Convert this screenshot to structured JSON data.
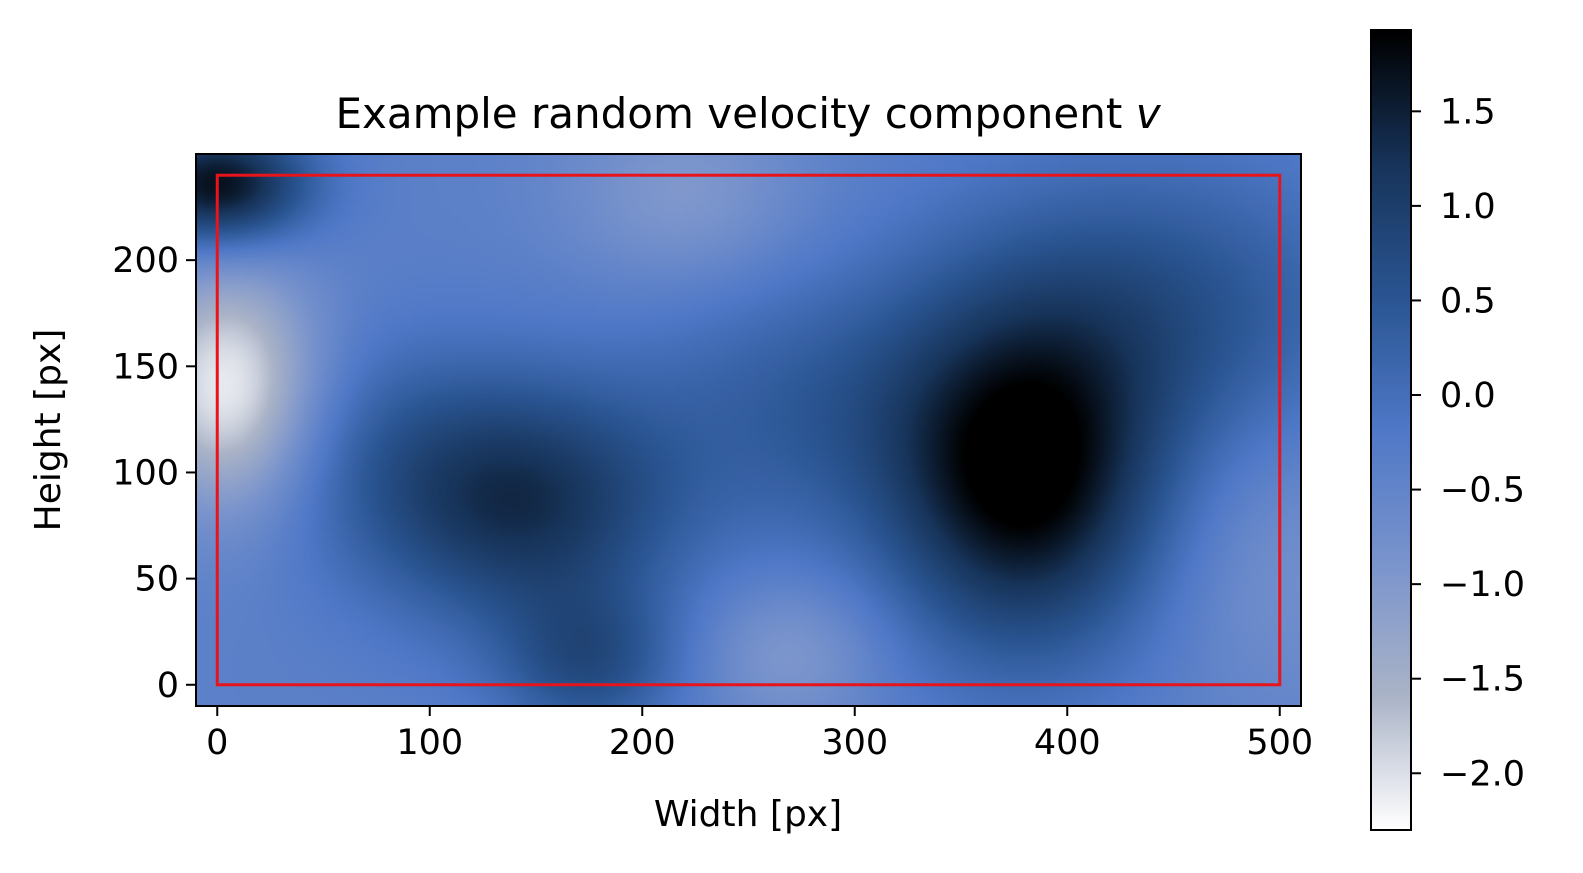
{
  "chart_data": {
    "type": "heatmap",
    "title": "Example random velocity component ",
    "title_var": "v",
    "xlabel": "Width [px]",
    "ylabel": "Height [px]",
    "xlim": [
      -10,
      510
    ],
    "ylim": [
      -10,
      250
    ],
    "x_ticks": [
      0,
      100,
      200,
      300,
      400,
      500
    ],
    "y_ticks": [
      0,
      50,
      100,
      150,
      200
    ],
    "grid": false,
    "colorbar": {
      "range": [
        -2.3,
        1.93
      ],
      "ticks": [
        -2.0,
        -1.5,
        -1.0,
        -0.5,
        0.0,
        0.5,
        1.0,
        1.5
      ],
      "tick_labels": [
        "−2.0",
        "−1.5",
        "−1.0",
        "−0.5",
        "0.0",
        "0.5",
        "1.0",
        "1.5"
      ],
      "colormap": [
        "#ffffff",
        "#aab3c7",
        "#7a94cc",
        "#4f78c7",
        "#2a5592",
        "#17345a",
        "#000000"
      ]
    },
    "base_value": -0.4,
    "features": [
      {
        "x": 380,
        "y": 95,
        "sx": 45,
        "sy": 55,
        "value": 2.3
      },
      {
        "x": 440,
        "y": 175,
        "sx": 70,
        "sy": 50,
        "value": 1.0
      },
      {
        "x": 145,
        "y": 85,
        "sx": 50,
        "sy": 40,
        "value": 1.6
      },
      {
        "x": 175,
        "y": 10,
        "sx": 30,
        "sy": 25,
        "value": 1.0
      },
      {
        "x": 80,
        "y": 110,
        "sx": 45,
        "sy": 40,
        "value": 0.5
      },
      {
        "x": 5,
        "y": 140,
        "sx": 30,
        "sy": 40,
        "value": -1.8
      },
      {
        "x": 0,
        "y": 235,
        "sx": 30,
        "sy": 20,
        "value": 2.2
      },
      {
        "x": 280,
        "y": 130,
        "sx": 60,
        "sy": 45,
        "value": 0.7
      },
      {
        "x": 220,
        "y": 230,
        "sx": 40,
        "sy": 30,
        "value": -0.6
      },
      {
        "x": 270,
        "y": 15,
        "sx": 30,
        "sy": 25,
        "value": -0.6
      },
      {
        "x": 500,
        "y": 60,
        "sx": 40,
        "sy": 50,
        "value": -0.4
      }
    ],
    "annotation_box": {
      "x0": 0,
      "y0": 0,
      "x1": 500,
      "y1": 240,
      "color": "#e8141b"
    }
  }
}
